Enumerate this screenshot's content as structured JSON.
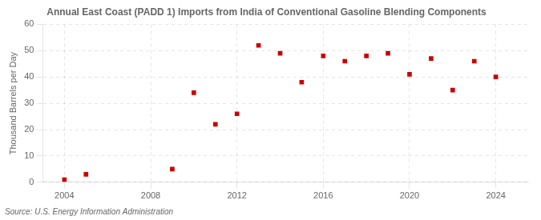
{
  "chart_data": {
    "type": "scatter",
    "title": "Annual East Coast (PADD 1) Imports from India of Conventional Gasoline Blending Components",
    "ylabel": "Thousand Barrels per Day",
    "annotation": "Source: U.S. Energy Information Administration",
    "x": [
      2004,
      2005,
      2009,
      2010,
      2011,
      2012,
      2013,
      2014,
      2015,
      2016,
      2017,
      2018,
      2019,
      2020,
      2021,
      2022,
      2023,
      2024
    ],
    "values": [
      1,
      3,
      5,
      34,
      22,
      26,
      52,
      49,
      38,
      48,
      46,
      48,
      49,
      41,
      47,
      35,
      46,
      40
    ],
    "color": "#cc0000",
    "marker": "square",
    "xlim": [
      2003,
      2025.5
    ],
    "ylim": [
      0,
      60
    ],
    "xticks": [
      2004,
      2008,
      2012,
      2016,
      2020,
      2024
    ],
    "yticks": [
      0,
      10,
      20,
      30,
      40,
      50,
      60
    ],
    "grid": true
  }
}
